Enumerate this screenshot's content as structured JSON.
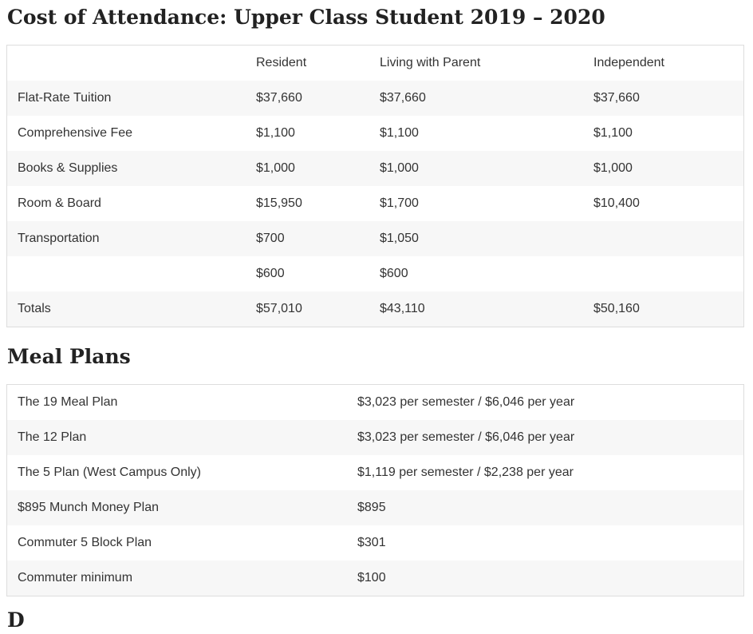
{
  "cost_section": {
    "title": "Cost of Attendance: Upper Class Student 2019 – 2020",
    "header": [
      "",
      "Resident",
      "Living with Parent",
      "Independent"
    ],
    "rows": [
      [
        "Flat-Rate Tuition",
        "$37,660",
        "$37,660",
        "$37,660"
      ],
      [
        "Comprehensive Fee",
        "$1,100",
        "$1,100",
        "$1,100"
      ],
      [
        "Books & Supplies",
        "$1,000",
        "$1,000",
        "$1,000"
      ],
      [
        "Room & Board",
        "$15,950",
        "$1,700",
        "$10,400"
      ],
      [
        "Transportation",
        "$700",
        "$1,050",
        ""
      ],
      [
        "",
        "$600",
        "$600",
        ""
      ],
      [
        "Totals",
        "$57,010",
        "$43,110",
        "$50,160"
      ]
    ]
  },
  "meal_section": {
    "title": "Meal Plans",
    "rows": [
      [
        "The 19 Meal Plan",
        "$3,023 per semester / $6,046 per year"
      ],
      [
        "The 12 Plan",
        "$3,023 per semester / $6,046 per year"
      ],
      [
        "The 5 Plan (West Campus Only)",
        "$1,119 per semester / $2,238 per year"
      ],
      [
        "$895 Munch Money Plan",
        "$895"
      ],
      [
        "Commuter 5 Block Plan",
        "$301"
      ],
      [
        "Commuter minimum",
        "$100"
      ]
    ]
  },
  "next_section": {
    "title": "D"
  }
}
